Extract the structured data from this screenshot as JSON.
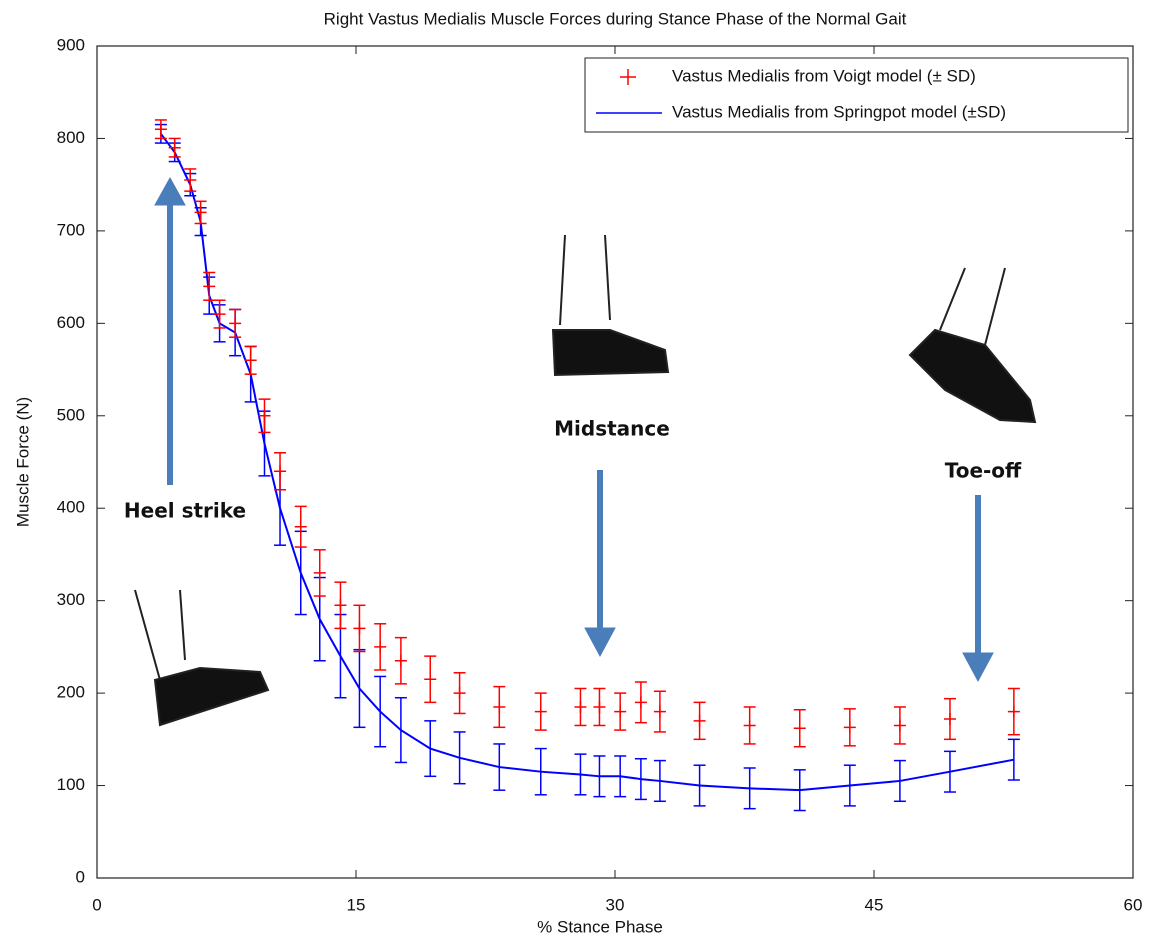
{
  "chart_data": {
    "type": "line",
    "title": "Right Vastus Medialis Muscle Forces during Stance Phase of the Normal Gait",
    "x_label": "% Stance Phase",
    "y_label": "Muscle Force (N)",
    "x": [
      3.7,
      4.5,
      5.4,
      6.0,
      6.5,
      7.1,
      8.0,
      8.9,
      9.7,
      10.6,
      11.8,
      12.9,
      14.1,
      15.2,
      16.4,
      17.6,
      19.3,
      21.0,
      23.3,
      25.7,
      28.0,
      29.1,
      30.3,
      31.5,
      32.6,
      34.9,
      37.8,
      40.7,
      43.6,
      46.5,
      49.4,
      53.1
    ],
    "series": [
      {
        "name": "Vastus Medialis from Voigt model (± SD)",
        "color": "#ff0000",
        "marker": "+",
        "values": [
          810,
          790,
          755,
          720,
          640,
          610,
          600,
          560,
          500,
          440,
          380,
          330,
          295,
          270,
          250,
          235,
          215,
          200,
          185,
          180,
          185,
          185,
          180,
          190,
          180,
          170,
          165,
          162,
          163,
          165,
          172,
          180
        ],
        "errors": [
          10,
          10,
          12,
          12,
          15,
          15,
          15,
          15,
          18,
          20,
          22,
          25,
          25,
          25,
          25,
          25,
          25,
          22,
          22,
          20,
          20,
          20,
          20,
          22,
          22,
          20,
          20,
          20,
          20,
          20,
          22,
          25
        ]
      },
      {
        "name": "Vastus Medialis from Springpot model (±SD)",
        "color": "#0000ff",
        "marker": "line",
        "values": [
          805,
          785,
          750,
          710,
          630,
          600,
          590,
          545,
          470,
          400,
          330,
          280,
          240,
          205,
          180,
          160,
          140,
          130,
          120,
          115,
          112,
          110,
          110,
          107,
          105,
          100,
          97,
          95,
          100,
          105,
          115,
          128
        ],
        "errors": [
          10,
          10,
          12,
          15,
          20,
          20,
          25,
          30,
          35,
          40,
          45,
          45,
          45,
          42,
          38,
          35,
          30,
          28,
          25,
          25,
          22,
          22,
          22,
          22,
          22,
          22,
          22,
          22,
          22,
          22,
          22,
          22
        ]
      }
    ],
    "xlim": [
      0,
      60
    ],
    "xticks": [
      0,
      15,
      30,
      45,
      60
    ],
    "ylim": [
      0,
      900
    ],
    "yticks": [
      0,
      100,
      200,
      300,
      400,
      500,
      600,
      700,
      800,
      900
    ],
    "legend": "upper right",
    "annotations": [
      "Heel strike",
      "Midstance",
      "Toe-off"
    ]
  }
}
